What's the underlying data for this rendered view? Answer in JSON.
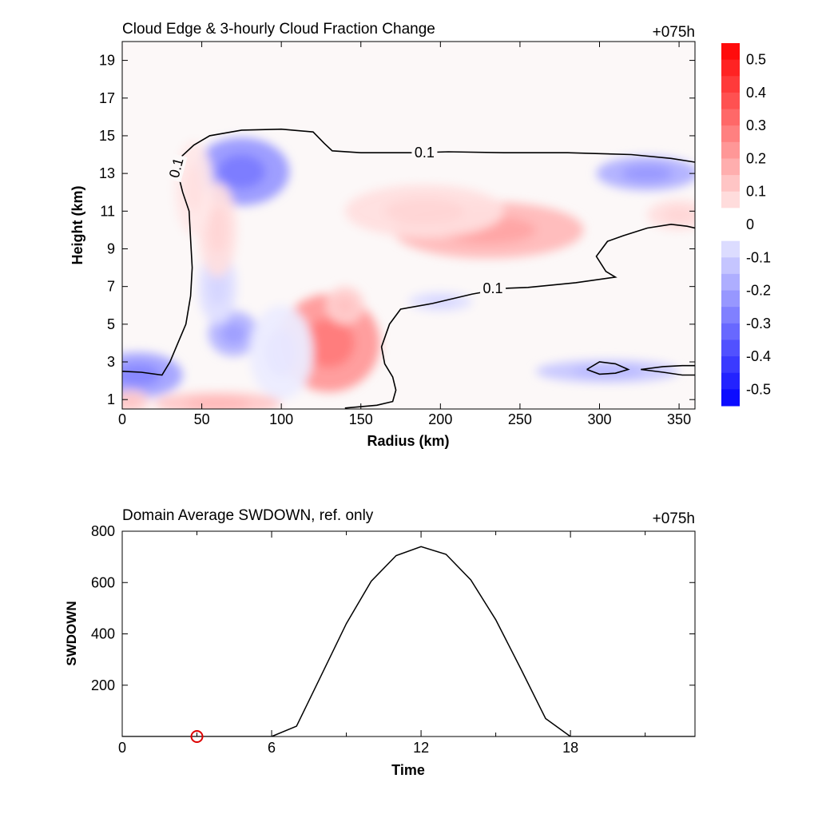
{
  "chart_data": [
    {
      "type": "heatmap",
      "title": "Cloud Edge & 3-hourly Cloud Fraction Change",
      "time_label": "+075h",
      "xlabel": "Radius (km)",
      "ylabel": "Height (km)",
      "xlim": [
        0,
        360
      ],
      "ylim": [
        0.5,
        20
      ],
      "xticks": [
        0,
        50,
        100,
        150,
        200,
        250,
        300,
        350
      ],
      "yticks": [
        1,
        3,
        5,
        7,
        9,
        11,
        13,
        15,
        17,
        19
      ],
      "colorbar": {
        "ticks": [
          "0.5",
          "0.4",
          "0.3",
          "0.2",
          "0.1",
          "0",
          "-0.1",
          "-0.2",
          "-0.3",
          "-0.4",
          "-0.5"
        ],
        "range": [
          -0.55,
          0.55
        ],
        "max_color": "#ff0000",
        "min_color": "#0000ff",
        "mid_color": "#ffffff"
      },
      "contour": {
        "level_label": "0.1",
        "paths": [
          [
            [
              0,
              2.5
            ],
            [
              12,
              2.45
            ],
            [
              25,
              2.3
            ],
            [
              30,
              3.0
            ],
            [
              35,
              4.0
            ],
            [
              40,
              5.0
            ],
            [
              43,
              6.5
            ],
            [
              44,
              8.0
            ],
            [
              43,
              9.5
            ],
            [
              42,
              11.0
            ],
            [
              38,
              12.0
            ],
            [
              35,
              13.0
            ],
            [
              36,
              13.8
            ],
            [
              45,
              14.5
            ],
            [
              55,
              15.0
            ],
            [
              75,
              15.3
            ],
            [
              100,
              15.35
            ],
            [
              120,
              15.2
            ],
            [
              127,
              14.6
            ],
            [
              132,
              14.2
            ],
            [
              150,
              14.1
            ],
            [
              185,
              14.1
            ],
            [
              205,
              14.15
            ],
            [
              240,
              14.1
            ],
            [
              280,
              14.1
            ],
            [
              320,
              14.0
            ],
            [
              345,
              13.8
            ],
            [
              360,
              13.6
            ]
          ],
          [
            [
              360,
              10.1
            ],
            [
              355,
              10.2
            ],
            [
              345,
              10.3
            ],
            [
              330,
              10.1
            ],
            [
              315,
              9.7
            ],
            [
              305,
              9.4
            ],
            [
              298,
              8.6
            ],
            [
              304,
              7.8
            ],
            [
              310,
              7.5
            ],
            [
              285,
              7.2
            ],
            [
              255,
              6.95
            ],
            [
              240,
              6.9
            ],
            [
              220,
              6.6
            ],
            [
              195,
              6.1
            ],
            [
              175,
              5.8
            ],
            [
              168,
              5.0
            ],
            [
              163,
              3.8
            ],
            [
              165,
              2.9
            ],
            [
              170,
              2.2
            ],
            [
              172,
              1.5
            ],
            [
              170,
              0.9
            ],
            [
              160,
              0.7
            ],
            [
              140,
              0.55
            ]
          ],
          [
            [
              292,
              2.6
            ],
            [
              300,
              3.0
            ],
            [
              310,
              2.9
            ],
            [
              318,
              2.6
            ],
            [
              310,
              2.4
            ],
            [
              300,
              2.35
            ],
            [
              292,
              2.6
            ]
          ],
          [
            [
              326,
              2.6
            ],
            [
              340,
              2.75
            ],
            [
              352,
              2.8
            ],
            [
              360,
              2.8
            ]
          ],
          [
            [
              326,
              2.6
            ],
            [
              340,
              2.45
            ],
            [
              352,
              2.3
            ],
            [
              360,
              2.3
            ]
          ]
        ],
        "labels": [
          {
            "text": "0.1",
            "x": 34,
            "y": 13.3,
            "angle": -75
          },
          {
            "text": "0.1",
            "x": 190,
            "y": 14.1,
            "angle": 0
          },
          {
            "text": "0.1",
            "x": 233,
            "y": 6.9,
            "angle": 0
          }
        ]
      },
      "field_blobs": [
        {
          "cx": 75,
          "cy": 13.1,
          "rx": 30,
          "ry": 1.8,
          "v": -0.22
        },
        {
          "cx": 130,
          "cy": 4.0,
          "rx": 32,
          "ry": 2.6,
          "v": 0.22
        },
        {
          "cx": 140,
          "cy": 6.0,
          "rx": 12,
          "ry": 1.0,
          "v": 0.1
        },
        {
          "cx": 230,
          "cy": 10.0,
          "rx": 60,
          "ry": 1.5,
          "v": 0.15
        },
        {
          "cx": 190,
          "cy": 11.0,
          "rx": 50,
          "ry": 1.4,
          "v": 0.07
        },
        {
          "cx": 330,
          "cy": 13.0,
          "rx": 32,
          "ry": 0.9,
          "v": -0.17
        },
        {
          "cx": 10,
          "cy": 2.3,
          "rx": 28,
          "ry": 1.2,
          "v": -0.2
        },
        {
          "cx": 70,
          "cy": 4.5,
          "rx": 16,
          "ry": 1.2,
          "v": -0.16
        },
        {
          "cx": 60,
          "cy": 7.0,
          "rx": 12,
          "ry": 2.0,
          "v": -0.07
        },
        {
          "cx": 305,
          "cy": 2.5,
          "rx": 45,
          "ry": 0.6,
          "v": -0.12
        },
        {
          "cx": 60,
          "cy": 0.8,
          "rx": 40,
          "ry": 0.6,
          "v": 0.12
        },
        {
          "cx": 5,
          "cy": 0.9,
          "rx": 12,
          "ry": 0.6,
          "v": 0.1
        },
        {
          "cx": 60,
          "cy": 10.0,
          "rx": 12,
          "ry": 2.5,
          "v": 0.07
        },
        {
          "cx": 200,
          "cy": 6.2,
          "rx": 20,
          "ry": 0.5,
          "v": -0.07
        },
        {
          "cx": 100,
          "cy": 3.5,
          "rx": 20,
          "ry": 2.5,
          "v": -0.04
        },
        {
          "cx": 45,
          "cy": 12.2,
          "rx": 12,
          "ry": 2.5,
          "v": 0.05
        },
        {
          "cx": 350,
          "cy": 10.8,
          "rx": 20,
          "ry": 0.8,
          "v": 0.07
        }
      ]
    },
    {
      "type": "line",
      "title": "Domain Average SWDOWN, ref. only",
      "time_label": "+075h",
      "xlabel": "Time",
      "ylabel": "SWDOWN",
      "xlim": [
        0,
        23
      ],
      "ylim": [
        0,
        800
      ],
      "xticks": [
        0,
        6,
        12,
        18
      ],
      "yticks": [
        200,
        400,
        600,
        800
      ],
      "x": [
        0,
        1,
        2,
        3,
        4,
        5,
        6,
        7,
        8,
        9,
        10,
        11,
        12,
        13,
        14,
        15,
        16,
        17,
        18,
        19,
        20,
        21,
        22,
        23
      ],
      "y": [
        0,
        0,
        0,
        0,
        0,
        0,
        0,
        40,
        240,
        440,
        605,
        705,
        740,
        710,
        610,
        455,
        265,
        70,
        0,
        0,
        0,
        0,
        0,
        0
      ],
      "marker": {
        "x": 3,
        "y": 0,
        "color": "#dd0000"
      }
    }
  ]
}
